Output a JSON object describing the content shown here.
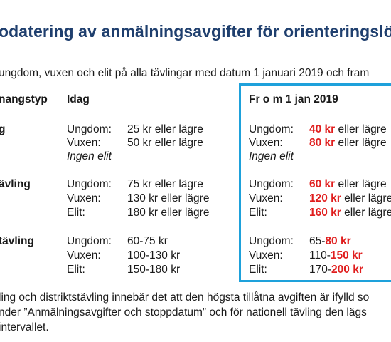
{
  "title": "odatering av anmälningsavgifter för orienteringslö",
  "intro": "ungdom, vuxen och elit på alla tävlingar med datum 1 januari 2019 och fram",
  "headers": {
    "type": "nangstyp",
    "today": "Idag",
    "from": "Fr o m 1 jan 2019"
  },
  "groups": [
    {
      "category": "g",
      "rows": [
        {
          "label": "Ungdom:",
          "today": "25 kr eller lägre",
          "new_num": "40 kr",
          "new_suffix": " eller lägre"
        },
        {
          "label": "Vuxen:",
          "today": "50 kr eller lägre",
          "new_num": "80 kr",
          "new_suffix": " eller lägre"
        }
      ],
      "note_today": "Ingen elit",
      "note_new": "Ingen elit"
    },
    {
      "category": "ävling",
      "rows": [
        {
          "label": "Ungdom:",
          "today": "75 kr eller lägre",
          "new_num": "60 kr",
          "new_suffix": " eller lägre"
        },
        {
          "label": "Vuxen:",
          "today": "130 kr eller lägre",
          "new_num": "120 kr",
          "new_suffix": " eller lägre"
        },
        {
          "label": "Elit:",
          "today": "180 kr eller lägre",
          "new_num": "160 kr",
          "new_suffix": " eller lägre"
        }
      ]
    },
    {
      "category": "tävling",
      "rows": [
        {
          "label": "Ungdom:",
          "today": "60-75 kr",
          "new_prefix": "65-",
          "new_num": "80 kr"
        },
        {
          "label": "Vuxen:",
          "today": "100-130 kr",
          "new_prefix": "110-",
          "new_num": "150 kr"
        },
        {
          "label": "Elit:",
          "today": "150-180 kr",
          "new_prefix": "170-",
          "new_num": "200 kr"
        }
      ]
    }
  ],
  "footer": [
    "ling och distriktstävling innebär det att den högsta tillåtna avgiften är ifylld so",
    "nder ”Anmälningsavgifter och stoppdatum” och för nationell tävling den lägs",
    " intervallet."
  ],
  "colors": {
    "title": "#1f3f6e",
    "highlight": "#e01e1e",
    "box": "#1ea1db"
  }
}
